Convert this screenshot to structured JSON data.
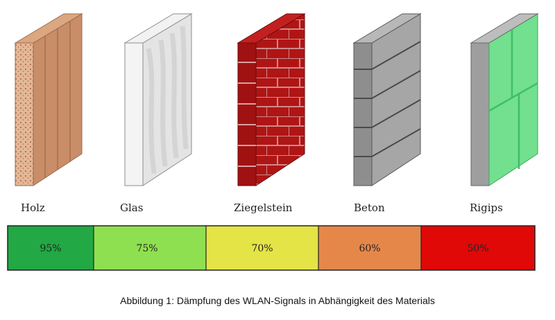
{
  "materials": [
    {
      "name": "Holz",
      "value": "95%",
      "color": "#22a844",
      "wall_color": "#c98d68"
    },
    {
      "name": "Glas",
      "value": "75%",
      "color": "#8fe050",
      "wall_color": "#e8e8e8"
    },
    {
      "name": "Ziegelstein",
      "value": "70%",
      "color": "#e4e447",
      "wall_color": "#b01515"
    },
    {
      "name": "Beton",
      "value": "60%",
      "color": "#e6874a",
      "wall_color": "#9a9a9a"
    },
    {
      "name": "Rigips",
      "value": "50%",
      "color": "#e10808",
      "wall_color": "#6edc8c"
    }
  ],
  "caption": "Abbildung 1: Dämpfung des WLAN-Signals in Abhängigkeit des Materials"
}
